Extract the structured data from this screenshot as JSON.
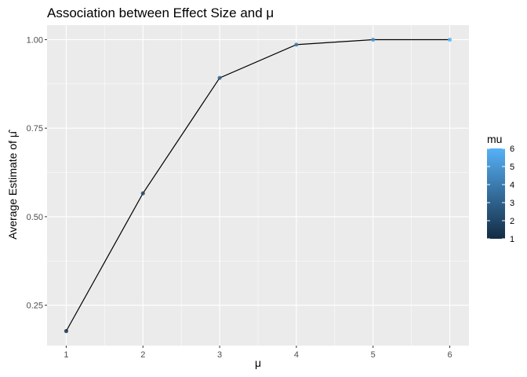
{
  "chart_data": {
    "type": "line",
    "title": "Association between Effect Size and μ",
    "xlabel": "μ",
    "ylabel": "Average Estimate of μ̂",
    "x": [
      1,
      2,
      3,
      4,
      5,
      6
    ],
    "y": [
      0.177,
      0.566,
      0.892,
      0.986,
      1.0,
      1.0
    ],
    "xlim": [
      0.75,
      6.25
    ],
    "ylim": [
      0.136,
      1.041
    ],
    "x_ticks": [
      1,
      2,
      3,
      4,
      5,
      6
    ],
    "x_tick_labels": [
      "1",
      "2",
      "3",
      "4",
      "5",
      "6"
    ],
    "y_ticks": [
      0.25,
      0.5,
      0.75,
      1.0
    ],
    "y_tick_labels": [
      "0.25",
      "0.50",
      "0.75",
      "1.00"
    ],
    "grid": true,
    "legend": {
      "title": "mu",
      "placement": "right",
      "type": "colorbar",
      "range": [
        1,
        6
      ],
      "labels": [
        "6",
        "5",
        "4",
        "3",
        "2",
        "1"
      ],
      "low_color": "#132B43",
      "high_color": "#56B1F7"
    },
    "colors": {
      "panel": "#ebebeb",
      "grid_major": "#ffffff",
      "line": "#000000"
    }
  }
}
